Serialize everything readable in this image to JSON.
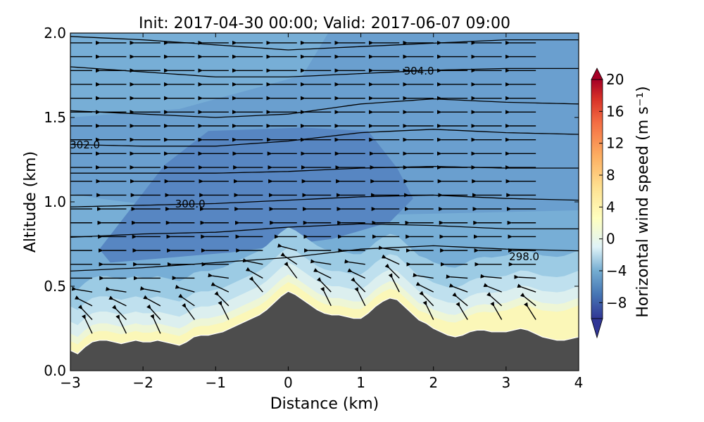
{
  "chart_data": {
    "type": "contour-section",
    "title": "Init: 2017-04-30 00:00; Valid: 2017-06-07 09:00",
    "xlabel": "Distance (km)",
    "ylabel": "Altitude (km)",
    "xlim": [
      -3,
      4
    ],
    "ylim": [
      0.0,
      2.0
    ],
    "xticks": [
      -3,
      -2,
      -1,
      0,
      1,
      2,
      3,
      4
    ],
    "xtick_labels": [
      "−3",
      "−2",
      "−1",
      "0",
      "1",
      "2",
      "3",
      "4"
    ],
    "yticks": [
      0.0,
      0.5,
      1.0,
      1.5,
      2.0
    ],
    "ytick_labels": [
      "0.0",
      "0.5",
      "1.0",
      "1.5",
      "2.0"
    ],
    "colorbar": {
      "label": "Horizontal wind speed (m s⁻¹)",
      "min": -10,
      "max": 20,
      "ticks": [
        -8,
        -4,
        0,
        4,
        8,
        12,
        16,
        20
      ],
      "tick_labels": [
        "−8",
        "−4",
        "0",
        "4",
        "8",
        "12",
        "16",
        "20"
      ],
      "extend": "both",
      "colormap": "RdYlBu_r"
    },
    "terrain": {
      "x": [
        -3.0,
        -2.9,
        -2.8,
        -2.7,
        -2.6,
        -2.5,
        -2.4,
        -2.3,
        -2.2,
        -2.1,
        -2.0,
        -1.9,
        -1.8,
        -1.7,
        -1.6,
        -1.5,
        -1.4,
        -1.3,
        -1.2,
        -1.1,
        -1.0,
        -0.9,
        -0.8,
        -0.7,
        -0.6,
        -0.5,
        -0.4,
        -0.3,
        -0.2,
        -0.1,
        0.0,
        0.1,
        0.2,
        0.3,
        0.4,
        0.5,
        0.6,
        0.7,
        0.8,
        0.9,
        1.0,
        1.1,
        1.2,
        1.3,
        1.4,
        1.5,
        1.6,
        1.7,
        1.8,
        1.9,
        2.0,
        2.1,
        2.2,
        2.3,
        2.4,
        2.5,
        2.6,
        2.7,
        2.8,
        2.9,
        3.0,
        3.1,
        3.2,
        3.3,
        3.4,
        3.5,
        3.6,
        3.7,
        3.8,
        3.9,
        4.0
      ],
      "y": [
        0.12,
        0.1,
        0.14,
        0.17,
        0.18,
        0.18,
        0.17,
        0.16,
        0.17,
        0.18,
        0.17,
        0.17,
        0.18,
        0.17,
        0.16,
        0.15,
        0.17,
        0.2,
        0.21,
        0.21,
        0.22,
        0.23,
        0.25,
        0.27,
        0.29,
        0.31,
        0.33,
        0.36,
        0.4,
        0.44,
        0.47,
        0.45,
        0.42,
        0.39,
        0.36,
        0.34,
        0.33,
        0.33,
        0.32,
        0.31,
        0.31,
        0.34,
        0.38,
        0.41,
        0.43,
        0.42,
        0.38,
        0.34,
        0.3,
        0.28,
        0.25,
        0.23,
        0.21,
        0.2,
        0.21,
        0.23,
        0.24,
        0.24,
        0.23,
        0.23,
        0.23,
        0.24,
        0.25,
        0.24,
        0.22,
        0.2,
        0.19,
        0.18,
        0.18,
        0.19,
        0.2
      ]
    },
    "isentropes": [
      {
        "label": "298.0",
        "x": [
          -3,
          -2,
          -1,
          0,
          1,
          2,
          3,
          4
        ],
        "y": [
          0.59,
          0.61,
          0.64,
          0.67,
          0.72,
          0.74,
          0.72,
          0.71
        ]
      },
      {
        "label": "",
        "x": [
          -3,
          -2,
          -1,
          0,
          1,
          2,
          3,
          4
        ],
        "y": [
          0.79,
          0.81,
          0.82,
          0.85,
          0.87,
          0.86,
          0.84,
          0.84
        ]
      },
      {
        "label": "300.0",
        "x": [
          -3,
          -2,
          -1,
          0,
          1,
          2,
          3,
          4
        ],
        "y": [
          0.97,
          0.98,
          0.99,
          1.01,
          1.03,
          1.04,
          1.02,
          1.01
        ]
      },
      {
        "label": "",
        "x": [
          -3,
          -2,
          -1,
          0,
          1,
          2,
          3,
          4
        ],
        "y": [
          1.17,
          1.17,
          1.17,
          1.18,
          1.2,
          1.21,
          1.2,
          1.2
        ]
      },
      {
        "label": "302.0",
        "x": [
          -3,
          -2,
          -1,
          0,
          1,
          2,
          3,
          4
        ],
        "y": [
          1.34,
          1.33,
          1.33,
          1.36,
          1.41,
          1.43,
          1.41,
          1.4
        ]
      },
      {
        "label": "",
        "x": [
          -3,
          -2,
          -1,
          0,
          1,
          2,
          3,
          4
        ],
        "y": [
          1.54,
          1.52,
          1.5,
          1.52,
          1.58,
          1.61,
          1.59,
          1.58
        ]
      },
      {
        "label": "304.0",
        "x": [
          -3,
          -2,
          -1,
          0,
          1,
          2,
          3,
          4
        ],
        "y": [
          1.8,
          1.77,
          1.74,
          1.74,
          1.76,
          1.78,
          1.79,
          1.79
        ]
      },
      {
        "label": "",
        "x": [
          -3,
          -2,
          -1,
          0,
          1,
          2,
          3,
          4
        ],
        "y": [
          1.98,
          1.96,
          1.93,
          1.9,
          1.92,
          1.94,
          1.96,
          1.96
        ]
      }
    ],
    "wind_field": {
      "dominant_direction": "westward (negative u)",
      "u_range": [
        -8,
        -3
      ],
      "near_surface_vertical_motion": "updraft over terrain"
    }
  }
}
